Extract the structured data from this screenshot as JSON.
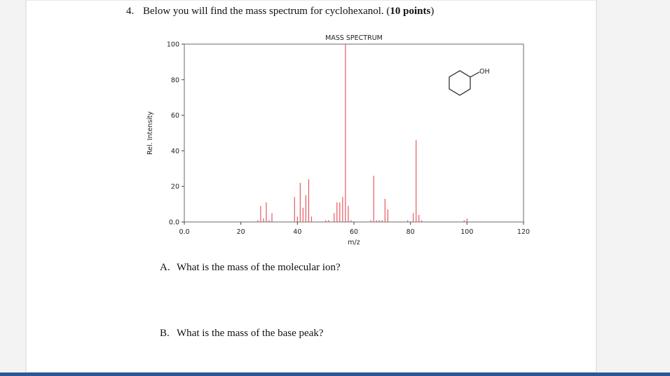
{
  "question": {
    "number": "4.",
    "text": "Below you will find the mass spectrum for cyclohexanol. (",
    "points": "10 points",
    "close": ")",
    "parts": [
      {
        "letter": "A.",
        "text": "What is the mass of the molecular ion?"
      },
      {
        "letter": "B.",
        "text": "What is the mass of the base peak?"
      }
    ]
  },
  "structure_label": "OH",
  "chart_data": {
    "type": "stem",
    "title": "MASS SPECTRUM",
    "xlabel": "m/z",
    "ylabel": "Rel. Intensity",
    "color": "#e8595f",
    "x": [
      26,
      27,
      28,
      29,
      30,
      31,
      39,
      40,
      41,
      42,
      43,
      44,
      45,
      50,
      51,
      53,
      54,
      55,
      56,
      57,
      58,
      59,
      66,
      67,
      68,
      69,
      70,
      71,
      72,
      79,
      81,
      82,
      83,
      84,
      99,
      100
    ],
    "values": [
      1,
      9,
      2,
      11,
      1,
      5,
      14,
      3,
      22,
      8,
      15,
      24,
      3,
      1,
      1,
      5,
      11,
      11,
      14,
      100,
      9,
      1,
      1,
      26,
      1,
      1,
      1,
      13,
      7,
      1,
      5,
      46,
      4,
      1,
      1,
      2
    ],
    "xlim": [
      0,
      120
    ],
    "ylim": [
      0,
      100
    ],
    "xticks": [
      {
        "value": 0,
        "label": "0.0"
      },
      20,
      40,
      60,
      80,
      100,
      120
    ],
    "yticks": [
      {
        "value": 0,
        "label": "0.0"
      },
      20,
      40,
      60,
      80,
      100
    ]
  }
}
